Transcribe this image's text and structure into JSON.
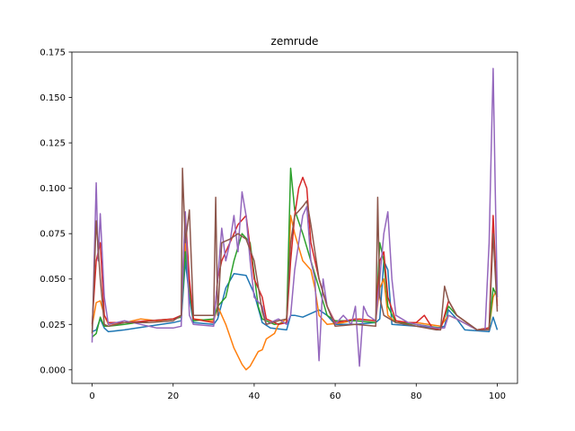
{
  "chart_data": {
    "type": "line",
    "title": "zemrude",
    "xlabel": "",
    "ylabel": "",
    "xlim": [
      -5,
      105
    ],
    "ylim": [
      -0.0075,
      0.175
    ],
    "xticks": [
      0,
      20,
      40,
      60,
      80,
      100
    ],
    "xtick_labels": [
      "0",
      "20",
      "40",
      "60",
      "80",
      "100"
    ],
    "yticks": [
      0.0,
      0.025,
      0.05,
      0.075,
      0.1,
      0.125,
      0.15,
      0.175
    ],
    "ytick_labels": [
      "0.000",
      "0.025",
      "0.050",
      "0.075",
      "0.100",
      "0.125",
      "0.150",
      "0.175"
    ],
    "grid": false,
    "legend": "none",
    "series": [
      {
        "color": "#1f77b4",
        "points": [
          [
            0,
            0.021
          ],
          [
            1,
            0.022
          ],
          [
            2,
            0.028
          ],
          [
            3,
            0.023
          ],
          [
            4,
            0.021
          ],
          [
            8,
            0.022
          ],
          [
            14,
            0.024
          ],
          [
            20,
            0.026
          ],
          [
            22,
            0.027
          ],
          [
            23,
            0.06
          ],
          [
            24,
            0.04
          ],
          [
            25,
            0.026
          ],
          [
            30,
            0.025
          ],
          [
            31,
            0.028
          ],
          [
            33,
            0.045
          ],
          [
            35,
            0.053
          ],
          [
            38,
            0.052
          ],
          [
            40,
            0.042
          ],
          [
            42,
            0.026
          ],
          [
            44,
            0.023
          ],
          [
            48,
            0.022
          ],
          [
            49,
            0.03
          ],
          [
            50,
            0.03
          ],
          [
            52,
            0.029
          ],
          [
            54,
            0.031
          ],
          [
            56,
            0.033
          ],
          [
            58,
            0.03
          ],
          [
            60,
            0.025
          ],
          [
            65,
            0.025
          ],
          [
            70,
            0.026
          ],
          [
            71,
            0.028
          ],
          [
            72,
            0.06
          ],
          [
            73,
            0.055
          ],
          [
            74,
            0.025
          ],
          [
            80,
            0.024
          ],
          [
            85,
            0.023
          ],
          [
            87,
            0.024
          ],
          [
            88,
            0.033
          ],
          [
            90,
            0.028
          ],
          [
            92,
            0.022
          ],
          [
            98,
            0.021
          ],
          [
            99,
            0.029
          ],
          [
            100,
            0.022
          ]
        ]
      },
      {
        "color": "#ff7f0e",
        "points": [
          [
            0,
            0.024
          ],
          [
            1,
            0.037
          ],
          [
            2,
            0.038
          ],
          [
            3,
            0.03
          ],
          [
            4,
            0.025
          ],
          [
            8,
            0.026
          ],
          [
            12,
            0.028
          ],
          [
            16,
            0.027
          ],
          [
            20,
            0.028
          ],
          [
            22,
            0.029
          ],
          [
            23,
            0.07
          ],
          [
            24,
            0.045
          ],
          [
            25,
            0.028
          ],
          [
            30,
            0.027
          ],
          [
            31,
            0.035
          ],
          [
            33,
            0.025
          ],
          [
            35,
            0.012
          ],
          [
            37,
            0.003
          ],
          [
            38,
            0.0
          ],
          [
            39,
            0.002
          ],
          [
            41,
            0.01
          ],
          [
            42,
            0.011
          ],
          [
            43,
            0.017
          ],
          [
            45,
            0.02
          ],
          [
            46,
            0.025
          ],
          [
            48,
            0.028
          ],
          [
            49,
            0.085
          ],
          [
            50,
            0.075
          ],
          [
            52,
            0.06
          ],
          [
            54,
            0.055
          ],
          [
            55,
            0.045
          ],
          [
            56,
            0.03
          ],
          [
            58,
            0.025
          ],
          [
            62,
            0.026
          ],
          [
            66,
            0.028
          ],
          [
            70,
            0.027
          ],
          [
            71,
            0.045
          ],
          [
            72,
            0.05
          ],
          [
            73,
            0.03
          ],
          [
            75,
            0.026
          ],
          [
            80,
            0.026
          ],
          [
            86,
            0.024
          ],
          [
            88,
            0.03
          ],
          [
            90,
            0.028
          ],
          [
            95,
            0.022
          ],
          [
            98,
            0.023
          ],
          [
            99,
            0.04
          ],
          [
            100,
            0.045
          ]
        ]
      },
      {
        "color": "#2ca02c",
        "points": [
          [
            0,
            0.018
          ],
          [
            1,
            0.02
          ],
          [
            2,
            0.029
          ],
          [
            3,
            0.024
          ],
          [
            4,
            0.024
          ],
          [
            8,
            0.025
          ],
          [
            14,
            0.027
          ],
          [
            20,
            0.028
          ],
          [
            22,
            0.029
          ],
          [
            23,
            0.065
          ],
          [
            24,
            0.045
          ],
          [
            25,
            0.027
          ],
          [
            30,
            0.028
          ],
          [
            31,
            0.035
          ],
          [
            33,
            0.04
          ],
          [
            35,
            0.06
          ],
          [
            37,
            0.075
          ],
          [
            39,
            0.07
          ],
          [
            41,
            0.035
          ],
          [
            42,
            0.028
          ],
          [
            45,
            0.025
          ],
          [
            48,
            0.026
          ],
          [
            49,
            0.111
          ],
          [
            50,
            0.088
          ],
          [
            52,
            0.075
          ],
          [
            54,
            0.06
          ],
          [
            56,
            0.045
          ],
          [
            58,
            0.03
          ],
          [
            60,
            0.027
          ],
          [
            65,
            0.027
          ],
          [
            70,
            0.026
          ],
          [
            71,
            0.07
          ],
          [
            72,
            0.06
          ],
          [
            73,
            0.035
          ],
          [
            75,
            0.026
          ],
          [
            80,
            0.025
          ],
          [
            86,
            0.023
          ],
          [
            88,
            0.035
          ],
          [
            90,
            0.03
          ],
          [
            95,
            0.022
          ],
          [
            98,
            0.023
          ],
          [
            99,
            0.045
          ],
          [
            100,
            0.04
          ]
        ]
      },
      {
        "color": "#d62728",
        "points": [
          [
            0,
            0.025
          ],
          [
            1,
            0.06
          ],
          [
            2,
            0.07
          ],
          [
            3,
            0.03
          ],
          [
            4,
            0.026
          ],
          [
            8,
            0.026
          ],
          [
            14,
            0.027
          ],
          [
            20,
            0.028
          ],
          [
            22,
            0.03
          ],
          [
            23,
            0.085
          ],
          [
            24,
            0.05
          ],
          [
            25,
            0.028
          ],
          [
            30,
            0.026
          ],
          [
            31,
            0.05
          ],
          [
            32,
            0.06
          ],
          [
            34,
            0.07
          ],
          [
            36,
            0.08
          ],
          [
            38,
            0.085
          ],
          [
            40,
            0.05
          ],
          [
            42,
            0.04
          ],
          [
            43,
            0.028
          ],
          [
            46,
            0.025
          ],
          [
            48,
            0.026
          ],
          [
            49,
            0.06
          ],
          [
            50,
            0.085
          ],
          [
            51,
            0.1
          ],
          [
            52,
            0.106
          ],
          [
            53,
            0.1
          ],
          [
            54,
            0.07
          ],
          [
            56,
            0.05
          ],
          [
            58,
            0.035
          ],
          [
            60,
            0.026
          ],
          [
            65,
            0.028
          ],
          [
            70,
            0.027
          ],
          [
            71,
            0.06
          ],
          [
            72,
            0.065
          ],
          [
            73,
            0.04
          ],
          [
            75,
            0.027
          ],
          [
            78,
            0.026
          ],
          [
            80,
            0.026
          ],
          [
            82,
            0.03
          ],
          [
            84,
            0.023
          ],
          [
            86,
            0.022
          ],
          [
            88,
            0.038
          ],
          [
            90,
            0.03
          ],
          [
            95,
            0.022
          ],
          [
            98,
            0.023
          ],
          [
            99,
            0.085
          ],
          [
            100,
            0.035
          ]
        ]
      },
      {
        "color": "#9467bd",
        "points": [
          [
            0,
            0.015
          ],
          [
            0.5,
            0.06
          ],
          [
            1,
            0.103
          ],
          [
            1.5,
            0.06
          ],
          [
            2,
            0.086
          ],
          [
            3,
            0.04
          ],
          [
            4,
            0.025
          ],
          [
            8,
            0.027
          ],
          [
            12,
            0.025
          ],
          [
            16,
            0.023
          ],
          [
            20,
            0.023
          ],
          [
            22,
            0.024
          ],
          [
            22.5,
            0.06
          ],
          [
            23,
            0.087
          ],
          [
            24,
            0.03
          ],
          [
            25,
            0.025
          ],
          [
            30,
            0.024
          ],
          [
            31,
            0.05
          ],
          [
            32,
            0.078
          ],
          [
            33,
            0.06
          ],
          [
            34,
            0.07
          ],
          [
            35,
            0.085
          ],
          [
            36,
            0.065
          ],
          [
            37,
            0.098
          ],
          [
            38,
            0.085
          ],
          [
            39,
            0.06
          ],
          [
            40,
            0.04
          ],
          [
            42,
            0.035
          ],
          [
            43,
            0.025
          ],
          [
            46,
            0.028
          ],
          [
            48,
            0.025
          ],
          [
            49,
            0.03
          ],
          [
            50,
            0.055
          ],
          [
            51,
            0.07
          ],
          [
            52,
            0.085
          ],
          [
            53,
            0.09
          ],
          [
            54,
            0.06
          ],
          [
            55,
            0.05
          ],
          [
            56,
            0.005
          ],
          [
            57,
            0.05
          ],
          [
            58,
            0.035
          ],
          [
            60,
            0.025
          ],
          [
            62,
            0.03
          ],
          [
            64,
            0.025
          ],
          [
            65,
            0.035
          ],
          [
            66,
            0.002
          ],
          [
            67,
            0.035
          ],
          [
            68,
            0.03
          ],
          [
            70,
            0.027
          ],
          [
            71,
            0.05
          ],
          [
            72,
            0.075
          ],
          [
            73,
            0.087
          ],
          [
            74,
            0.05
          ],
          [
            75,
            0.03
          ],
          [
            78,
            0.026
          ],
          [
            80,
            0.025
          ],
          [
            85,
            0.023
          ],
          [
            87,
            0.023
          ],
          [
            88,
            0.03
          ],
          [
            90,
            0.028
          ],
          [
            95,
            0.022
          ],
          [
            97,
            0.022
          ],
          [
            98,
            0.07
          ],
          [
            98.5,
            0.12
          ],
          [
            99,
            0.166
          ],
          [
            99.5,
            0.1
          ],
          [
            100,
            0.04
          ]
        ]
      },
      {
        "color": "#8c564b",
        "points": [
          [
            0,
            0.02
          ],
          [
            1,
            0.082
          ],
          [
            2,
            0.05
          ],
          [
            3,
            0.025
          ],
          [
            4,
            0.024
          ],
          [
            8,
            0.026
          ],
          [
            14,
            0.026
          ],
          [
            20,
            0.027
          ],
          [
            22,
            0.03
          ],
          [
            22.3,
            0.111
          ],
          [
            23,
            0.07
          ],
          [
            24,
            0.088
          ],
          [
            25,
            0.03
          ],
          [
            30,
            0.03
          ],
          [
            30.5,
            0.095
          ],
          [
            31,
            0.03
          ],
          [
            32,
            0.07
          ],
          [
            34,
            0.072
          ],
          [
            36,
            0.075
          ],
          [
            38,
            0.072
          ],
          [
            40,
            0.06
          ],
          [
            42,
            0.032
          ],
          [
            43,
            0.025
          ],
          [
            46,
            0.027
          ],
          [
            48,
            0.028
          ],
          [
            49,
            0.07
          ],
          [
            50,
            0.085
          ],
          [
            52,
            0.09
          ],
          [
            53,
            0.093
          ],
          [
            54,
            0.08
          ],
          [
            56,
            0.05
          ],
          [
            58,
            0.035
          ],
          [
            60,
            0.024
          ],
          [
            65,
            0.025
          ],
          [
            70,
            0.024
          ],
          [
            70.5,
            0.095
          ],
          [
            71,
            0.04
          ],
          [
            72,
            0.03
          ],
          [
            75,
            0.026
          ],
          [
            80,
            0.024
          ],
          [
            85,
            0.022
          ],
          [
            86,
            0.022
          ],
          [
            87,
            0.046
          ],
          [
            88,
            0.038
          ],
          [
            90,
            0.03
          ],
          [
            95,
            0.022
          ],
          [
            98,
            0.022
          ],
          [
            99,
            0.075
          ],
          [
            100,
            0.032
          ]
        ]
      }
    ]
  }
}
